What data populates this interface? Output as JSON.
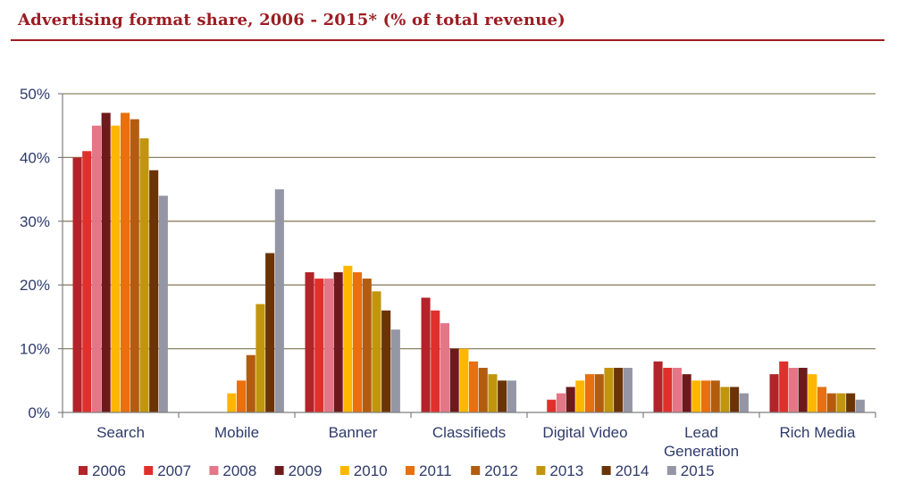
{
  "title": "Advertising format share, 2006 - 2015* (% of total revenue)",
  "chart_data": {
    "type": "bar",
    "title": "Advertising format share, 2006 - 2015* (% of total revenue)",
    "xlabel": "",
    "ylabel": "",
    "ylim": [
      0,
      50
    ],
    "yticks": [
      "0%",
      "10%",
      "20%",
      "30%",
      "40%",
      "50%"
    ],
    "ytick_values": [
      0,
      10,
      20,
      30,
      40,
      50
    ],
    "grid": true,
    "legend_position": "bottom",
    "categories": [
      "Search",
      "Mobile",
      "Banner",
      "Classifieds",
      "Digital Video",
      "Lead Generation",
      "Rich Media"
    ],
    "category_lines": [
      [
        "Search"
      ],
      [
        "Mobile"
      ],
      [
        "Banner"
      ],
      [
        "Classifieds"
      ],
      [
        "Digital Video"
      ],
      [
        "Lead",
        "Generation"
      ],
      [
        "Rich Media"
      ]
    ],
    "series": [
      {
        "name": "2006",
        "color": "#b2232a",
        "values": [
          40,
          0,
          22,
          18,
          0,
          8,
          6
        ]
      },
      {
        "name": "2007",
        "color": "#e0302c",
        "values": [
          41,
          0,
          21,
          16,
          2,
          7,
          8
        ]
      },
      {
        "name": "2008",
        "color": "#e37787",
        "values": [
          45,
          0,
          21,
          14,
          3,
          7,
          7
        ]
      },
      {
        "name": "2009",
        "color": "#6e1a1c",
        "values": [
          47,
          0,
          22,
          10,
          4,
          6,
          7
        ]
      },
      {
        "name": "2010",
        "color": "#ffb600",
        "values": [
          45,
          3,
          23,
          10,
          5,
          5,
          6
        ]
      },
      {
        "name": "2011",
        "color": "#e8700f",
        "values": [
          47,
          5,
          22,
          8,
          6,
          5,
          4
        ]
      },
      {
        "name": "2012",
        "color": "#b35c0f",
        "values": [
          46,
          9,
          21,
          7,
          6,
          5,
          3
        ]
      },
      {
        "name": "2013",
        "color": "#c1950e",
        "values": [
          43,
          17,
          19,
          6,
          7,
          4,
          3
        ]
      },
      {
        "name": "2014",
        "color": "#6b3406",
        "values": [
          38,
          25,
          16,
          5,
          7,
          4,
          3
        ]
      },
      {
        "name": "2015",
        "color": "#9496a6",
        "values": [
          34,
          35,
          13,
          5,
          7,
          3,
          2
        ]
      }
    ]
  }
}
